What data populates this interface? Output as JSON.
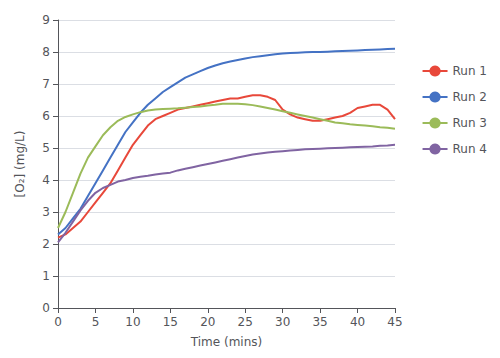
{
  "chart_data": {
    "type": "line",
    "xlabel": "Time (mins)",
    "ylabel": "[O₂] (mg/L)",
    "xlim": [
      0,
      45
    ],
    "ylim": [
      0,
      9
    ],
    "xticks": [
      0,
      5,
      10,
      15,
      20,
      25,
      30,
      35,
      40,
      45
    ],
    "yticks": [
      0,
      1,
      2,
      3,
      4,
      5,
      6,
      7,
      8,
      9
    ],
    "grid": true,
    "legend": "right",
    "x": [
      0,
      1,
      2,
      3,
      4,
      5,
      6,
      7,
      8,
      9,
      10,
      11,
      12,
      13,
      14,
      15,
      16,
      17,
      18,
      19,
      20,
      21,
      22,
      23,
      24,
      25,
      26,
      27,
      28,
      29,
      30,
      31,
      32,
      33,
      34,
      35,
      36,
      37,
      38,
      39,
      40,
      41,
      42,
      43,
      44,
      45
    ],
    "series": [
      {
        "name": "Run 1",
        "color": "#E8483A",
        "values": [
          2.2,
          2.3,
          2.5,
          2.7,
          3.0,
          3.3,
          3.6,
          3.9,
          4.3,
          4.7,
          5.1,
          5.4,
          5.7,
          5.9,
          6.0,
          6.1,
          6.2,
          6.25,
          6.3,
          6.35,
          6.4,
          6.45,
          6.5,
          6.55,
          6.55,
          6.6,
          6.65,
          6.65,
          6.6,
          6.5,
          6.2,
          6.05,
          5.95,
          5.9,
          5.85,
          5.85,
          5.9,
          5.95,
          6.0,
          6.1,
          6.25,
          6.3,
          6.35,
          6.35,
          6.2,
          5.9
        ]
      },
      {
        "name": "Run 2",
        "color": "#4472C4",
        "values": [
          2.3,
          2.5,
          2.8,
          3.1,
          3.5,
          3.9,
          4.3,
          4.7,
          5.1,
          5.5,
          5.8,
          6.1,
          6.35,
          6.55,
          6.75,
          6.9,
          7.05,
          7.2,
          7.3,
          7.4,
          7.5,
          7.58,
          7.65,
          7.7,
          7.75,
          7.8,
          7.84,
          7.87,
          7.9,
          7.93,
          7.95,
          7.97,
          7.98,
          7.99,
          8.0,
          8.0,
          8.01,
          8.02,
          8.03,
          8.04,
          8.05,
          8.06,
          8.07,
          8.08,
          8.09,
          8.1
        ]
      },
      {
        "name": "Run 3",
        "color": "#9BBB59",
        "values": [
          2.5,
          3.0,
          3.6,
          4.2,
          4.7,
          5.05,
          5.4,
          5.65,
          5.85,
          5.97,
          6.05,
          6.12,
          6.17,
          6.2,
          6.22,
          6.23,
          6.24,
          6.26,
          6.28,
          6.3,
          6.33,
          6.35,
          6.38,
          6.38,
          6.38,
          6.37,
          6.34,
          6.3,
          6.25,
          6.2,
          6.15,
          6.1,
          6.05,
          6.0,
          5.95,
          5.9,
          5.85,
          5.8,
          5.77,
          5.74,
          5.72,
          5.7,
          5.68,
          5.65,
          5.63,
          5.6
        ]
      },
      {
        "name": "Run 4",
        "color": "#8064A2",
        "values": [
          2.05,
          2.35,
          2.7,
          3.05,
          3.35,
          3.6,
          3.75,
          3.85,
          3.95,
          4.0,
          4.06,
          4.1,
          4.13,
          4.17,
          4.2,
          4.23,
          4.3,
          4.35,
          4.4,
          4.45,
          4.5,
          4.55,
          4.6,
          4.65,
          4.7,
          4.75,
          4.8,
          4.83,
          4.86,
          4.88,
          4.9,
          4.92,
          4.94,
          4.96,
          4.97,
          4.98,
          4.99,
          5.0,
          5.01,
          5.02,
          5.03,
          5.04,
          5.05,
          5.07,
          5.08,
          5.1
        ]
      }
    ]
  }
}
